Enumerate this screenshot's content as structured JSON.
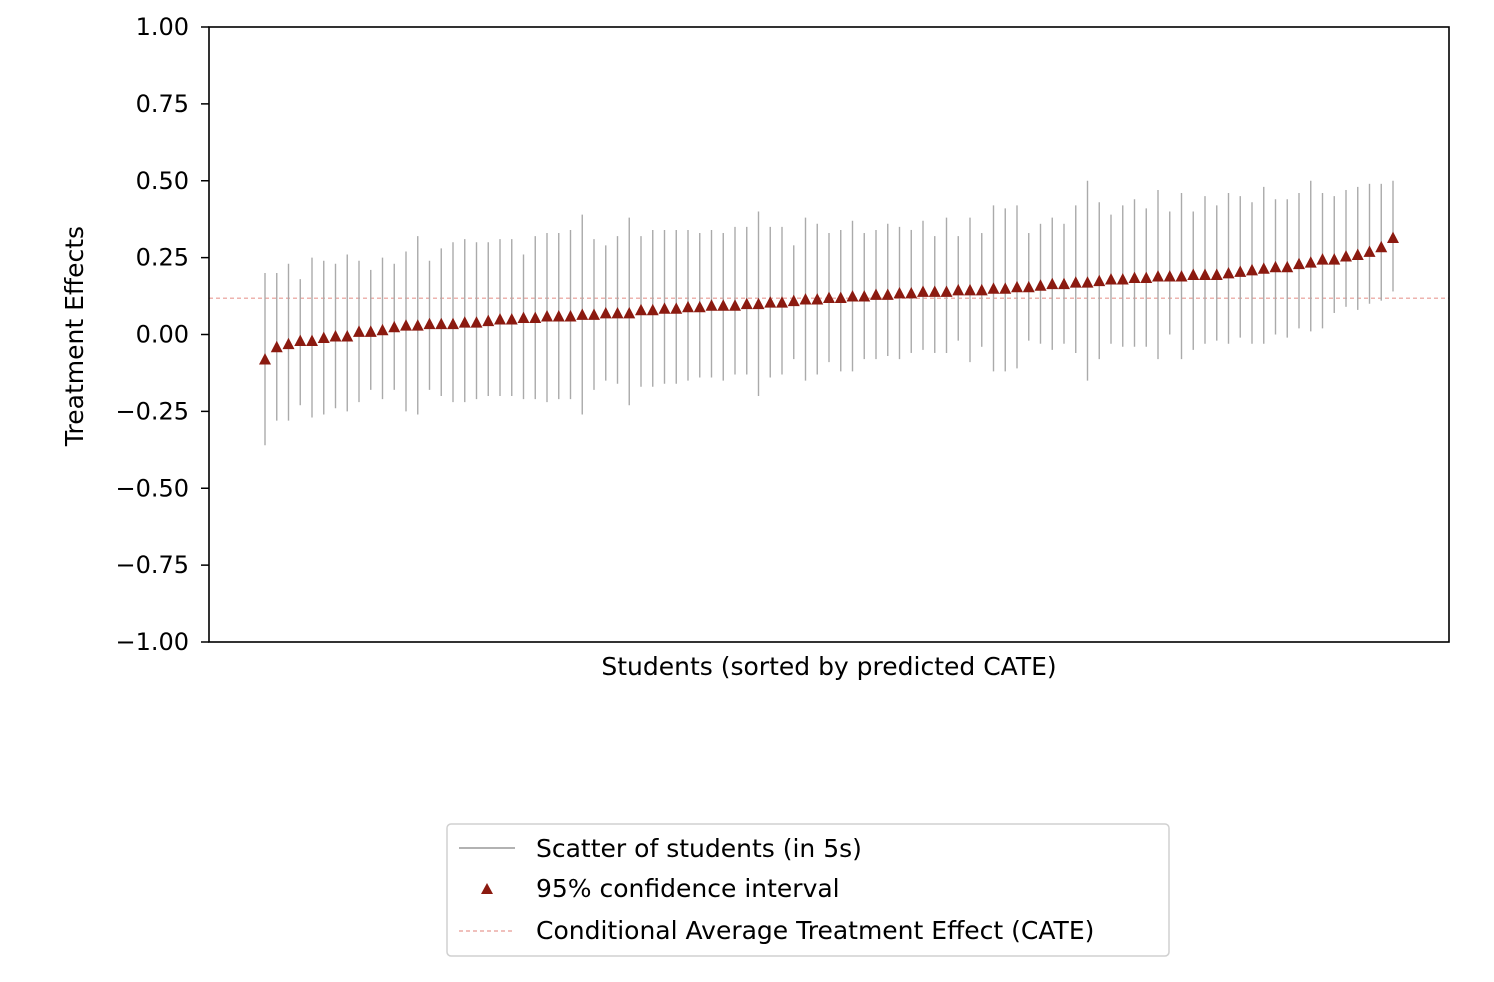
{
  "chart_data": {
    "type": "scatter",
    "title": "",
    "xlabel": "Students (sorted by predicted CATE)",
    "ylabel": "Treatment Effects",
    "ylim": [
      -1.0,
      1.0
    ],
    "yticks": [
      1.0,
      0.75,
      0.5,
      0.25,
      0.0,
      -0.25,
      -0.5,
      -0.75,
      -1.0
    ],
    "ytick_labels": [
      "1.00",
      "0.75",
      "0.50",
      "0.25",
      "0.00",
      "−0.25",
      "−0.50",
      "−0.75",
      "−1.00"
    ],
    "xticks_shown": false,
    "grid": false,
    "legend_placement": "bottom-center (below plot)",
    "cate_line": {
      "label": "Conditional Average Treatment Effect (CATE)",
      "value": 0.118,
      "color": "#e89a94",
      "style": "dashed"
    },
    "series": [
      {
        "name": "95% confidence interval",
        "marker": "triangle",
        "color": "#8b1a10",
        "points": [
          -0.08,
          -0.04,
          -0.03,
          -0.02,
          -0.02,
          -0.01,
          -0.005,
          -0.005,
          0.01,
          0.01,
          0.015,
          0.025,
          0.03,
          0.03,
          0.035,
          0.035,
          0.035,
          0.04,
          0.04,
          0.045,
          0.05,
          0.05,
          0.055,
          0.055,
          0.06,
          0.06,
          0.06,
          0.065,
          0.065,
          0.07,
          0.07,
          0.07,
          0.08,
          0.08,
          0.085,
          0.085,
          0.09,
          0.09,
          0.095,
          0.095,
          0.095,
          0.1,
          0.1,
          0.105,
          0.105,
          0.11,
          0.115,
          0.115,
          0.12,
          0.12,
          0.125,
          0.125,
          0.13,
          0.13,
          0.135,
          0.135,
          0.14,
          0.14,
          0.14,
          0.145,
          0.145,
          0.145,
          0.15,
          0.15,
          0.155,
          0.155,
          0.16,
          0.165,
          0.165,
          0.17,
          0.17,
          0.175,
          0.18,
          0.18,
          0.185,
          0.185,
          0.19,
          0.19,
          0.19,
          0.195,
          0.195,
          0.195,
          0.2,
          0.205,
          0.21,
          0.215,
          0.22,
          0.22,
          0.23,
          0.235,
          0.245,
          0.245,
          0.255,
          0.26,
          0.27,
          0.285,
          0.315
        ]
      },
      {
        "name": "Scatter of students (in 5s)",
        "marker": "vertical-line",
        "color": "#aaaaaa",
        "intervals": [
          [
            -0.36,
            0.2
          ],
          [
            -0.28,
            0.2
          ],
          [
            -0.28,
            0.23
          ],
          [
            -0.23,
            0.18
          ],
          [
            -0.27,
            0.25
          ],
          [
            -0.26,
            0.24
          ],
          [
            -0.24,
            0.23
          ],
          [
            -0.25,
            0.26
          ],
          [
            -0.22,
            0.24
          ],
          [
            -0.18,
            0.21
          ],
          [
            -0.21,
            0.25
          ],
          [
            -0.18,
            0.23
          ],
          [
            -0.25,
            0.27
          ],
          [
            -0.26,
            0.32
          ],
          [
            -0.18,
            0.24
          ],
          [
            -0.2,
            0.28
          ],
          [
            -0.22,
            0.3
          ],
          [
            -0.22,
            0.31
          ],
          [
            -0.21,
            0.3
          ],
          [
            -0.2,
            0.3
          ],
          [
            -0.2,
            0.31
          ],
          [
            -0.2,
            0.31
          ],
          [
            -0.21,
            0.26
          ],
          [
            -0.21,
            0.32
          ],
          [
            -0.22,
            0.33
          ],
          [
            -0.21,
            0.33
          ],
          [
            -0.21,
            0.34
          ],
          [
            -0.26,
            0.39
          ],
          [
            -0.18,
            0.31
          ],
          [
            -0.15,
            0.29
          ],
          [
            -0.16,
            0.32
          ],
          [
            -0.23,
            0.38
          ],
          [
            -0.17,
            0.32
          ],
          [
            -0.17,
            0.34
          ],
          [
            -0.16,
            0.34
          ],
          [
            -0.16,
            0.34
          ],
          [
            -0.15,
            0.34
          ],
          [
            -0.14,
            0.33
          ],
          [
            -0.14,
            0.34
          ],
          [
            -0.15,
            0.33
          ],
          [
            -0.13,
            0.35
          ],
          [
            -0.13,
            0.35
          ],
          [
            -0.2,
            0.4
          ],
          [
            -0.14,
            0.35
          ],
          [
            -0.13,
            0.35
          ],
          [
            -0.08,
            0.29
          ],
          [
            -0.15,
            0.38
          ],
          [
            -0.13,
            0.36
          ],
          [
            -0.09,
            0.33
          ],
          [
            -0.12,
            0.34
          ],
          [
            -0.12,
            0.37
          ],
          [
            -0.08,
            0.33
          ],
          [
            -0.08,
            0.34
          ],
          [
            -0.07,
            0.36
          ],
          [
            -0.08,
            0.35
          ],
          [
            -0.06,
            0.34
          ],
          [
            -0.05,
            0.37
          ],
          [
            -0.06,
            0.32
          ],
          [
            -0.06,
            0.38
          ],
          [
            -0.02,
            0.32
          ],
          [
            -0.09,
            0.38
          ],
          [
            -0.04,
            0.33
          ],
          [
            -0.12,
            0.42
          ],
          [
            -0.12,
            0.41
          ],
          [
            -0.11,
            0.42
          ],
          [
            -0.02,
            0.33
          ],
          [
            -0.03,
            0.36
          ],
          [
            -0.05,
            0.38
          ],
          [
            -0.03,
            0.36
          ],
          [
            -0.06,
            0.42
          ],
          [
            -0.15,
            0.5
          ],
          [
            -0.08,
            0.43
          ],
          [
            -0.03,
            0.39
          ],
          [
            -0.04,
            0.42
          ],
          [
            -0.04,
            0.44
          ],
          [
            -0.04,
            0.41
          ],
          [
            -0.08,
            0.47
          ],
          [
            0.0,
            0.4
          ],
          [
            -0.08,
            0.46
          ],
          [
            -0.05,
            0.4
          ],
          [
            -0.03,
            0.45
          ],
          [
            -0.02,
            0.42
          ],
          [
            -0.03,
            0.46
          ],
          [
            -0.01,
            0.45
          ],
          [
            -0.03,
            0.43
          ],
          [
            -0.03,
            0.48
          ],
          [
            0.0,
            0.44
          ],
          [
            -0.01,
            0.44
          ],
          [
            0.02,
            0.46
          ],
          [
            0.01,
            0.5
          ],
          [
            0.02,
            0.46
          ],
          [
            0.07,
            0.45
          ],
          [
            0.09,
            0.47
          ],
          [
            0.08,
            0.48
          ],
          [
            0.1,
            0.49
          ],
          [
            0.11,
            0.49
          ],
          [
            0.14,
            0.5
          ]
        ]
      }
    ]
  },
  "legend": {
    "items": [
      {
        "label": "Scatter of students (in 5s)"
      },
      {
        "label": "95% confidence interval"
      },
      {
        "label": "Conditional Average Treatment Effect (CATE)"
      }
    ]
  }
}
